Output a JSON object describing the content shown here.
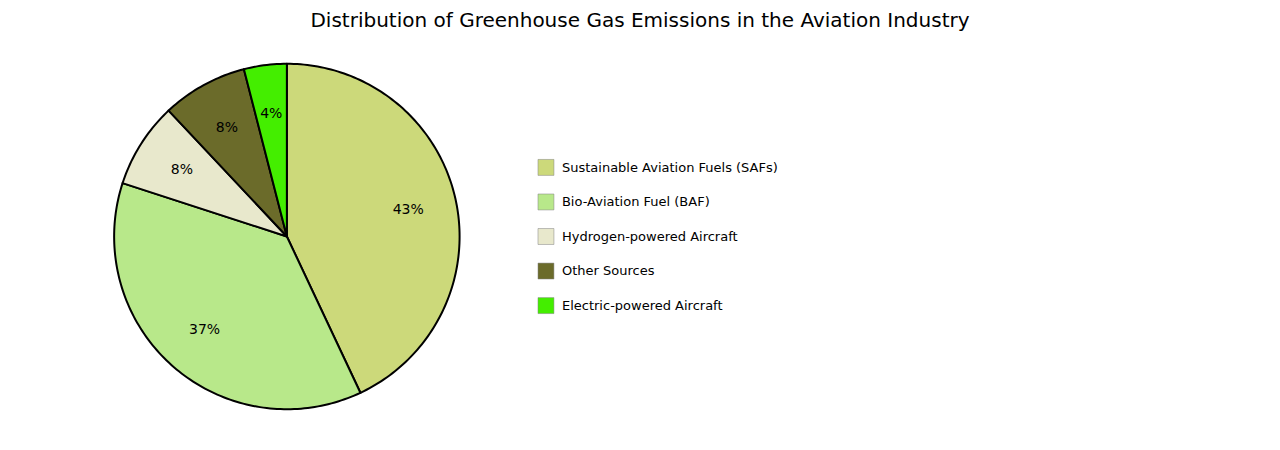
{
  "chart_data": {
    "type": "pie",
    "title": "Distribution of Greenhouse Gas Emissions in the Aviation Industry",
    "categories": [
      "Sustainable Aviation Fuels (SAFs)",
      "Bio-Aviation Fuel (BAF)",
      "Hydrogen-powered Aircraft",
      "Other Sources",
      "Electric-powered Aircraft"
    ],
    "values": [
      43,
      37,
      8,
      8,
      4
    ],
    "value_labels": [
      "43%",
      "37%",
      "8%",
      "8%",
      "4%"
    ],
    "colors": [
      "#ccd97a",
      "#b8e88a",
      "#e8e8cc",
      "#6b6b2a",
      "#44ee00"
    ],
    "data_labels": true,
    "legend": "right"
  }
}
